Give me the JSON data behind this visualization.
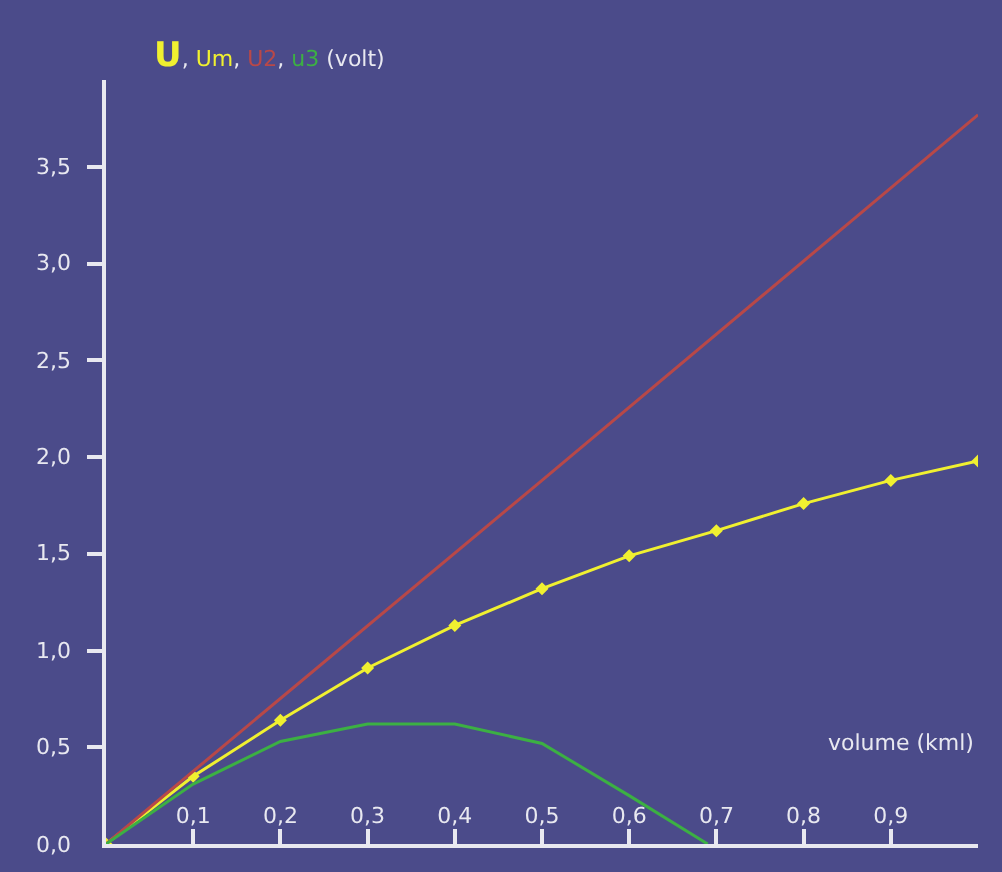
{
  "chart_data": {
    "type": "line",
    "xlabel": "volume (kml)",
    "ylabel": "U, Um, U2, u3 (volt)",
    "xlim": [
      0,
      1.0
    ],
    "ylim": [
      0,
      3.95
    ],
    "xticks": [
      {
        "value": 0.1,
        "label": "0,1"
      },
      {
        "value": 0.2,
        "label": "0,2"
      },
      {
        "value": 0.3,
        "label": "0,3"
      },
      {
        "value": 0.4,
        "label": "0,4"
      },
      {
        "value": 0.5,
        "label": "0,5"
      },
      {
        "value": 0.6,
        "label": "0,6"
      },
      {
        "value": 0.7,
        "label": "0,7"
      },
      {
        "value": 0.8,
        "label": "0,8"
      },
      {
        "value": 0.9,
        "label": "0,9"
      }
    ],
    "yticks": [
      {
        "value": 0,
        "label": "0,0"
      },
      {
        "value": 0.5,
        "label": "0,5"
      },
      {
        "value": 1.0,
        "label": "1,0"
      },
      {
        "value": 1.5,
        "label": "1,5"
      },
      {
        "value": 2.0,
        "label": "2,0"
      },
      {
        "value": 2.5,
        "label": "2,5"
      },
      {
        "value": 3.0,
        "label": "3,0"
      },
      {
        "value": 3.5,
        "label": "3,5"
      }
    ],
    "grid": false,
    "series": [
      {
        "color": "#f0f030",
        "marker": "diamond",
        "x": [
          0,
          0.1,
          0.2,
          0.3,
          0.4,
          0.5,
          0.6,
          0.7,
          0.8,
          0.9,
          1.0
        ],
        "values": [
          0,
          0.35,
          0.64,
          0.91,
          1.13,
          1.32,
          1.49,
          1.62,
          1.76,
          1.88,
          1.98
        ]
      },
      {
        "color": "#b84848",
        "marker": "none",
        "x": [
          0,
          0.5,
          1.0
        ],
        "values": [
          0,
          1.88,
          3.77
        ]
      },
      {
        "color": "#3cb043",
        "marker": "none",
        "x": [
          0,
          0.1,
          0.2,
          0.3,
          0.4,
          0.5,
          0.6,
          0.69
        ],
        "values": [
          0,
          0.31,
          0.53,
          0.62,
          0.62,
          0.52,
          0.25,
          0
        ]
      }
    ]
  }
}
